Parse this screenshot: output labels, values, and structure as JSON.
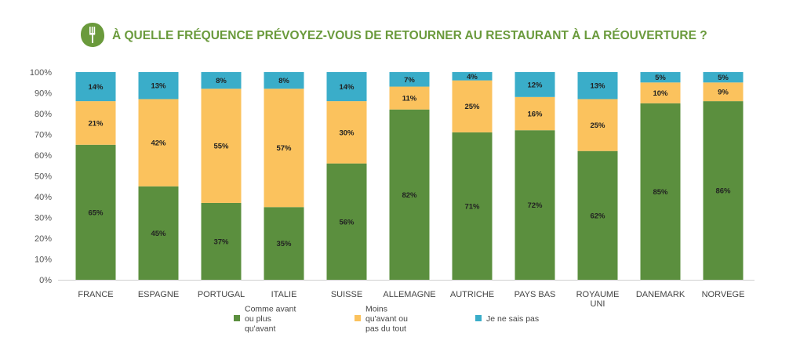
{
  "chart_data": {
    "type": "bar",
    "stacked": true,
    "title": "À QUELLE FRÉQUENCE PRÉVOYEZ-VOUS DE RETOURNER AU RESTAURANT À LA RÉOUVERTURE ?",
    "title_icon": "fork-knife-leaf-icon",
    "categories": [
      [
        "FRANCE"
      ],
      [
        "ESPAGNE"
      ],
      [
        "PORTUGAL"
      ],
      [
        "ITALIE"
      ],
      [
        "SUISSE"
      ],
      [
        "ALLEMAGNE"
      ],
      [
        "AUTRICHE"
      ],
      [
        "PAYS BAS"
      ],
      [
        "ROYAUME",
        "UNI"
      ],
      [
        "DANEMARK"
      ],
      [
        "NORVEGE"
      ]
    ],
    "series": [
      {
        "name": [
          "Comme avant",
          "ou plus",
          "qu'avant"
        ],
        "color": "#5b8f3e",
        "values": [
          65,
          45,
          37,
          35,
          56,
          82,
          71,
          72,
          62,
          85,
          86
        ]
      },
      {
        "name": [
          "Moins",
          "qu'avant ou",
          "pas du tout"
        ],
        "color": "#fbc25d",
        "values": [
          21,
          42,
          55,
          57,
          30,
          11,
          25,
          16,
          25,
          10,
          9
        ]
      },
      {
        "name": [
          "Je ne sais pas"
        ],
        "color": "#3aadc9",
        "values": [
          14,
          13,
          8,
          8,
          14,
          7,
          4,
          12,
          13,
          5,
          5
        ]
      }
    ],
    "value_suffix": "%",
    "ylim": [
      0,
      100
    ],
    "yticks": [
      "0%",
      "10%",
      "20%",
      "30%",
      "40%",
      "50%",
      "60%",
      "70%",
      "80%",
      "90%",
      "100%"
    ],
    "grid": false,
    "legend_position": "bottom"
  }
}
